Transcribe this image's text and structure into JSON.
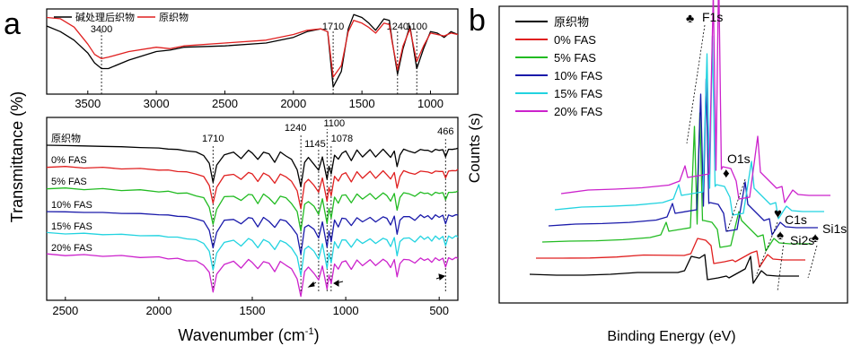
{
  "panel_a": {
    "letter": "a",
    "ylabel": "Transmittance (%)",
    "xlabel_main": "Wavenumber (cm",
    "xlabel_sup": "-1",
    "xlabel_end": ")",
    "top": {
      "legend": [
        {
          "name": "碱处理后织物",
          "color": "#000000"
        },
        {
          "name": "原织物",
          "color": "#e02020"
        }
      ],
      "peaks": [
        {
          "label": "3400",
          "x": 3400
        },
        {
          "label": "1710",
          "x": 1710
        },
        {
          "label": "1240",
          "x": 1240
        },
        {
          "label": "1100",
          "x": 1100
        }
      ]
    },
    "bottom": {
      "peaks": [
        {
          "label": "1710",
          "x": 1710
        },
        {
          "label": "1240",
          "x": 1240
        },
        {
          "label": "1145",
          "x": 1145
        },
        {
          "label": "1100",
          "x": 1100
        },
        {
          "label": "1078",
          "x": 1078
        },
        {
          "label": "466",
          "x": 466
        }
      ]
    }
  },
  "panel_b": {
    "letter": "b",
    "ylabel": "Counts (s)",
    "xlabel": "Binding Energy (eV)",
    "peaks": [
      {
        "label": "F1s",
        "symbol": "♣"
      },
      {
        "label": "O1s",
        "symbol": "♦"
      },
      {
        "label": "C1s",
        "symbol": "♥"
      },
      {
        "label": "Si2s",
        "symbol": "♠"
      },
      {
        "label": "Si1s",
        "symbol": "♠"
      }
    ]
  },
  "chart_data": [
    {
      "type": "line",
      "panel": "a-top",
      "xlim": [
        3800,
        800
      ],
      "ticks": [
        3500,
        3000,
        2500,
        2000,
        1500,
        1000
      ],
      "series": [
        {
          "name": "碱处理后织物",
          "color": "#000000",
          "x": [
            3800,
            3700,
            3600,
            3500,
            3450,
            3400,
            3350,
            3200,
            3000,
            2900,
            2800,
            2500,
            2200,
            2000,
            1900,
            1800,
            1750,
            1710,
            1650,
            1600,
            1560,
            1500,
            1450,
            1400,
            1340,
            1300,
            1280,
            1240,
            1200,
            1150,
            1100,
            1050,
            1000,
            950,
            900,
            850,
            800
          ],
          "y": [
            88,
            84,
            78,
            69,
            62,
            58,
            58,
            64,
            70,
            71,
            73,
            74,
            76,
            80,
            84,
            86,
            84,
            45,
            56,
            86,
            96,
            94,
            90,
            85,
            93,
            92,
            78,
            54,
            72,
            88,
            58,
            72,
            84,
            83,
            80,
            84,
            82
          ]
        },
        {
          "name": "原织物",
          "color": "#e02020",
          "x": [
            3800,
            3700,
            3600,
            3500,
            3450,
            3400,
            3350,
            3200,
            3000,
            2900,
            2800,
            2500,
            2200,
            2000,
            1900,
            1800,
            1750,
            1710,
            1650,
            1600,
            1560,
            1500,
            1450,
            1400,
            1340,
            1300,
            1280,
            1240,
            1200,
            1150,
            1100,
            1050,
            1000,
            950,
            900,
            850,
            800
          ],
          "y": [
            94,
            91,
            85,
            75,
            68,
            65,
            66,
            70,
            73,
            72,
            74,
            76,
            78,
            82,
            85,
            86,
            84,
            52,
            60,
            84,
            92,
            90,
            87,
            83,
            90,
            89,
            77,
            57,
            74,
            86,
            63,
            74,
            83,
            82,
            81,
            83,
            82
          ]
        }
      ]
    },
    {
      "type": "line",
      "panel": "a-bottom",
      "xlim": [
        2600,
        400
      ],
      "ticks": [
        2500,
        2000,
        1500,
        1000,
        500
      ],
      "series": [
        {
          "name": "原织物",
          "color": "#000000"
        },
        {
          "name": "0% FAS",
          "color": "#e02020"
        },
        {
          "name": "5% FAS",
          "color": "#22bb22"
        },
        {
          "name": "10% FAS",
          "color": "#1a1aaa"
        },
        {
          "name": "15% FAS",
          "color": "#22d3e0"
        },
        {
          "name": "20% FAS",
          "color": "#cc22cc"
        }
      ],
      "base_x": [
        2600,
        2500,
        2400,
        2300,
        2200,
        2100,
        2000,
        1950,
        1900,
        1850,
        1800,
        1760,
        1730,
        1710,
        1690,
        1650,
        1600,
        1560,
        1520,
        1500,
        1470,
        1440,
        1410,
        1380,
        1350,
        1320,
        1290,
        1260,
        1240,
        1220,
        1200,
        1170,
        1145,
        1125,
        1100,
        1090,
        1078,
        1060,
        1040,
        1020,
        1000,
        970,
        940,
        910,
        870,
        840,
        800,
        780,
        760,
        740,
        725,
        710,
        690,
        660,
        630,
        600,
        580,
        560,
        540,
        520,
        500,
        480,
        466,
        450,
        430,
        410,
        400
      ],
      "base_y": [
        0.0,
        0.2,
        0.4,
        0.6,
        0.9,
        1.2,
        1.6,
        2.0,
        2.4,
        3.0,
        3.8,
        5.5,
        10.0,
        20.0,
        11.0,
        5.0,
        4.0,
        7.0,
        3.0,
        4.0,
        8.0,
        3.5,
        5.0,
        9.0,
        4.0,
        5.5,
        8.0,
        13.0,
        23.0,
        9.0,
        7.0,
        10.0,
        14.0,
        6.0,
        19.0,
        11.0,
        16.0,
        5.0,
        8.0,
        4.0,
        3.5,
        8.0,
        3.0,
        6.0,
        2.8,
        6.0,
        2.5,
        4.0,
        7.0,
        2.8,
        12.0,
        5.0,
        2.5,
        3.0,
        4.5,
        2.0,
        3.0,
        2.5,
        4.0,
        2.0,
        3.0,
        2.2,
        6.5,
        2.0,
        2.5,
        1.8,
        1.8
      ]
    },
    {
      "type": "line",
      "panel": "b",
      "series": [
        {
          "name": "原织物",
          "color": "#000000"
        },
        {
          "name": "0% FAS",
          "color": "#e02020"
        },
        {
          "name": "5% FAS",
          "color": "#22bb22"
        },
        {
          "name": "10% FAS",
          "color": "#1a1aaa"
        },
        {
          "name": "15% FAS",
          "color": "#22d3e0"
        },
        {
          "name": "20% FAS",
          "color": "#cc22cc"
        }
      ]
    }
  ]
}
